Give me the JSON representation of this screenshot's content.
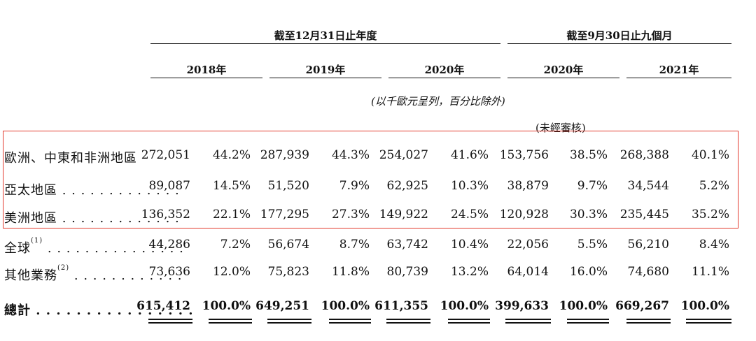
{
  "header": {
    "group_fy": "截至12月31日止年度",
    "group_9m": "截至9月30日止九個月",
    "years": [
      "2018年",
      "2019年",
      "2020年",
      "2020年",
      "2021年"
    ],
    "unit_note": "(以千歐元呈列，百分比除外)",
    "unaudited": "(未經審核)"
  },
  "rows": [
    {
      "label": "歐洲、中東和非洲地區",
      "sup": "",
      "values": [
        "272,051",
        "44.2%",
        "287,939",
        "44.3%",
        "254,027",
        "41.6%",
        "153,756",
        "38.5%",
        "268,388",
        "40.1%"
      ]
    },
    {
      "label": "亞太地區 . . . . . . . . . . . . .",
      "sup": "",
      "values": [
        "89,087",
        "14.5%",
        "51,520",
        "7.9%",
        "62,925",
        "10.3%",
        "38,879",
        "9.7%",
        "34,544",
        "5.2%"
      ]
    },
    {
      "label": "美洲地區 . . . . . . . . . . . . .",
      "sup": "",
      "values": [
        "136,352",
        "22.1%",
        "177,295",
        "27.3%",
        "149,922",
        "24.5%",
        "120,928",
        "30.3%",
        "235,445",
        "35.2%"
      ]
    },
    {
      "label": "全球",
      "sup": "(1)",
      "dots": " . . . . . . . . . . . . . . .",
      "values": [
        "44,286",
        "7.2%",
        "56,674",
        "8.7%",
        "63,742",
        "10.4%",
        "22,056",
        "5.5%",
        "56,210",
        "8.4%"
      ]
    },
    {
      "label": "其他業務",
      "sup": "(2)",
      "dots": " . . . . . . . . . . . .",
      "values": [
        "73,636",
        "12.0%",
        "75,823",
        "11.8%",
        "80,739",
        "13.2%",
        "64,014",
        "16.0%",
        "74,680",
        "11.1%"
      ]
    }
  ],
  "total": {
    "label": "總計 . . . . . . . . . . . . . . . .",
    "values": [
      "615,412",
      "100.0%",
      "649,251",
      "100.0%",
      "611,355",
      "100.0%",
      "399,633",
      "100.0%",
      "669,267",
      "100.0%"
    ]
  }
}
